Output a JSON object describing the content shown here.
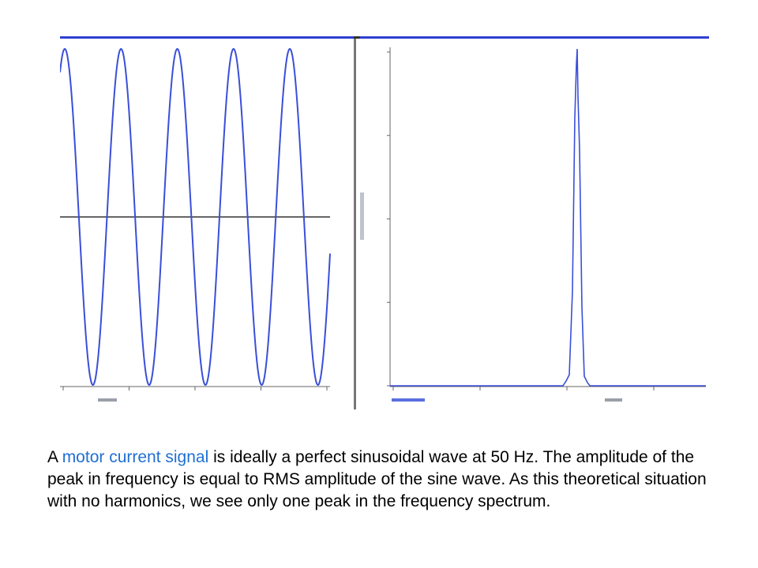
{
  "chart_data": [
    {
      "type": "line",
      "panel": "time-domain",
      "title": "",
      "xlabel": "",
      "ylabel": "",
      "color": "#3a4fd8",
      "baseline_color": "#666666",
      "signal": {
        "shape": "sine",
        "cycles_visible": 4.8
      },
      "x_ticks": [
        "",
        "",
        "",
        "",
        ""
      ]
    },
    {
      "type": "line",
      "panel": "frequency-spectrum",
      "title": "",
      "xlabel": "",
      "ylabel": "",
      "color": "#3a4fd8",
      "peak": {
        "relative_x": 0.5,
        "height": 1.0
      },
      "x_ticks": [
        "",
        "",
        "",
        ""
      ],
      "y_ticks": [
        "",
        "",
        "",
        "",
        ""
      ]
    }
  ],
  "caption": {
    "before": "A ",
    "highlight": "motor current signal",
    "after": " is ideally a perfect sinusoidal wave at 50 Hz. The amplitude of the peak in frequency is equal to RMS amplitude of the sine wave. As this theoretical situation with no harmonics, we see only one peak in the frequency spectrum."
  }
}
